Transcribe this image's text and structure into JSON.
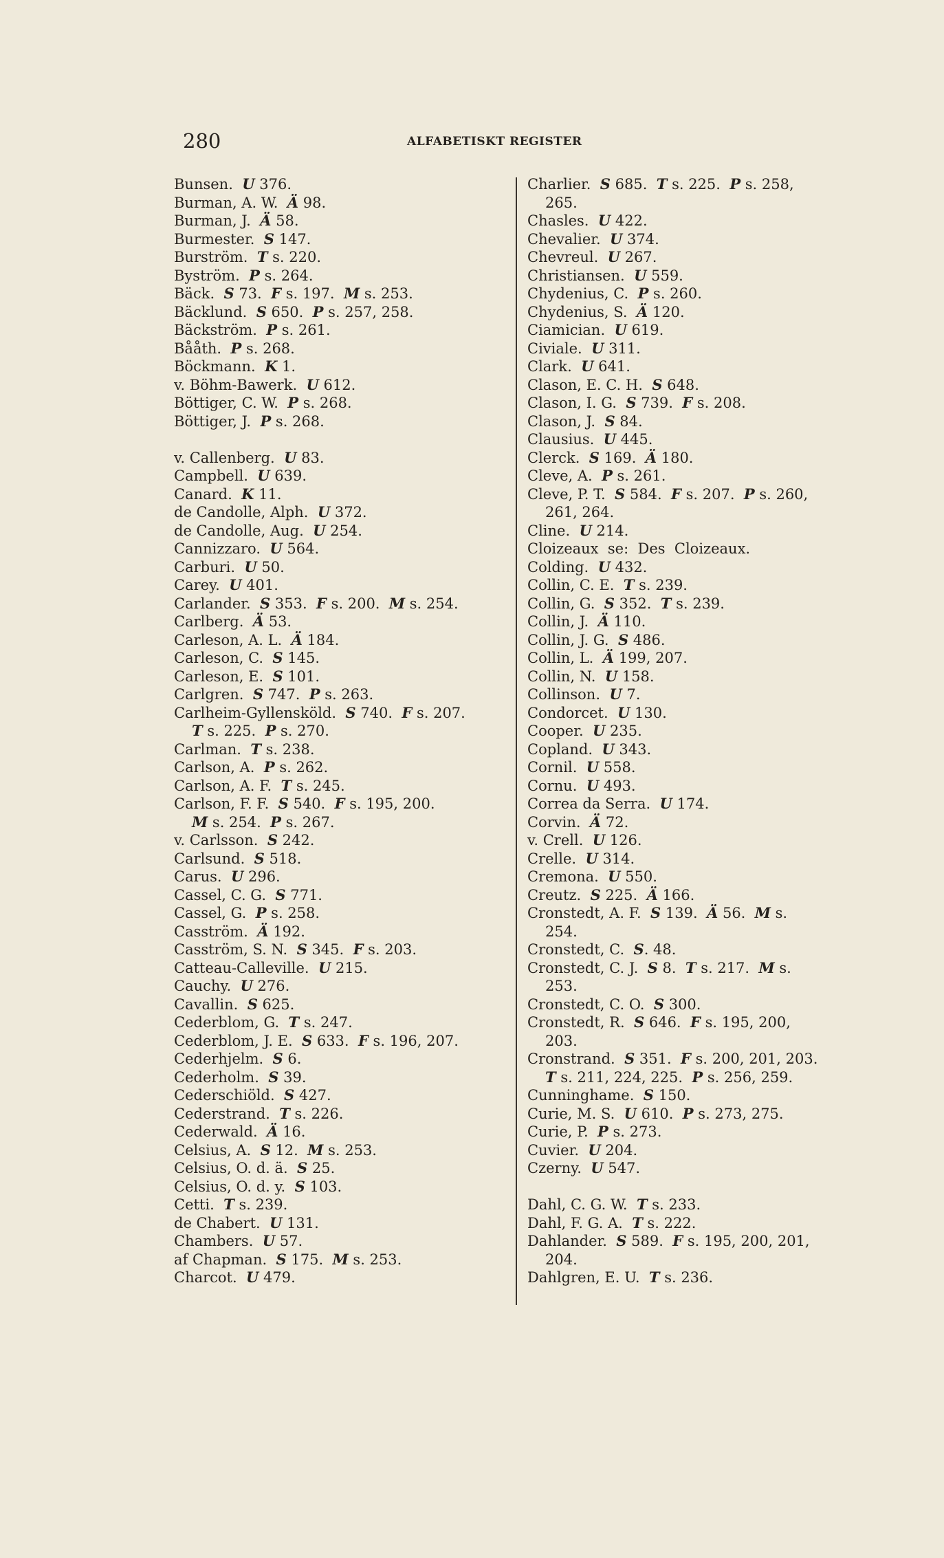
{
  "header": {
    "page_number": "280",
    "running_head": "ALFABETISKT REGISTER"
  },
  "columns": [
    [
      {
        "name": "Bunsen.",
        "refs": "U 376."
      },
      {
        "name": "Burman, A. W.",
        "refs": "Ä 98."
      },
      {
        "name": "Burman, J.",
        "refs": "Ä 58."
      },
      {
        "name": "Burmester.",
        "refs": "S 147."
      },
      {
        "name": "Burström.",
        "refs": "T s. 220."
      },
      {
        "name": "Byström.",
        "refs": "P s. 264."
      },
      {
        "name": "Bäck.",
        "refs": "S 73.  F s. 197.  M s. 253."
      },
      {
        "name": "Bäcklund.",
        "refs": "S 650.  P s. 257, 258."
      },
      {
        "name": "Bäckström.",
        "refs": "P s. 261."
      },
      {
        "name": "Bååth.",
        "refs": "P s. 268."
      },
      {
        "name": "Böckmann.",
        "refs": "K 1."
      },
      {
        "name": "v. Böhm-Bawerk.",
        "refs": "U 612."
      },
      {
        "name": "Böttiger, C. W.",
        "refs": "P s. 268."
      },
      {
        "name": "Böttiger, J.",
        "refs": "P s. 268."
      },
      {
        "blank": true
      },
      {
        "name": "v. Callenberg.",
        "refs": "U 83."
      },
      {
        "name": "Campbell.",
        "refs": "U 639."
      },
      {
        "name": "Canard.",
        "refs": "K 11."
      },
      {
        "name": "de Candolle, Alph.",
        "refs": "U 372."
      },
      {
        "name": "de Candolle, Aug.",
        "refs": "U 254."
      },
      {
        "name": "Cannizzaro.",
        "refs": "U 564."
      },
      {
        "name": "Carburi.",
        "refs": "U 50."
      },
      {
        "name": "Carey.",
        "refs": "U 401."
      },
      {
        "name": "Carlander.",
        "refs": "S 353.  F s. 200.  M s. 254."
      },
      {
        "name": "Carlberg.",
        "refs": "Ä 53."
      },
      {
        "name": "Carleson, A. L.",
        "refs": "Ä 184."
      },
      {
        "name": "Carleson, C.",
        "refs": "S 145."
      },
      {
        "name": "Carleson, E.",
        "refs": "S 101."
      },
      {
        "name": "Carlgren.",
        "refs": "S 747.  P s. 263."
      },
      {
        "name": "Carlheim-Gyllensköld.",
        "refs": "S 740.  F s. 207.",
        "cont": "T s. 225.  P s. 270."
      },
      {
        "name": "Carlman.",
        "refs": "T s. 238."
      },
      {
        "name": "Carlson, A.",
        "refs": "P s. 262."
      },
      {
        "name": "Carlson, A. F.",
        "refs": "T s. 245."
      },
      {
        "name": "Carlson, F. F.",
        "refs": "S 540.  F s. 195, 200.",
        "cont": "M s. 254.  P s. 267."
      },
      {
        "name": "v. Carlsson.",
        "refs": "S 242."
      },
      {
        "name": "Carlsund.",
        "refs": "S 518."
      },
      {
        "name": "Carus.",
        "refs": "U 296."
      },
      {
        "name": "Cassel, C. G.",
        "refs": "S 771."
      },
      {
        "name": "Cassel, G.",
        "refs": "P s. 258."
      },
      {
        "name": "Casström.",
        "refs": "Ä 192."
      },
      {
        "name": "Casström, S. N.",
        "refs": "S 345.  F s. 203."
      },
      {
        "name": "Catteau-Calleville.",
        "refs": "U 215."
      },
      {
        "name": "Cauchy.",
        "refs": "U 276."
      },
      {
        "name": "Cavallin.",
        "refs": "S 625."
      },
      {
        "name": "Cederblom, G.",
        "refs": "T s. 247."
      },
      {
        "name": "Cederblom, J. E.",
        "refs": "S 633.  F s. 196, 207."
      },
      {
        "name": "Cederhjelm.",
        "refs": "S 6."
      },
      {
        "name": "Cederholm.",
        "refs": "S 39."
      },
      {
        "name": "Cederschiöld.",
        "refs": "S 427."
      },
      {
        "name": "Cederstrand.",
        "refs": "T s. 226."
      },
      {
        "name": "Cederwald.",
        "refs": "Ä 16."
      },
      {
        "name": "Celsius, A.",
        "refs": "S 12.  M s. 253."
      },
      {
        "name": "Celsius, O. d. ä.",
        "refs": "S 25."
      },
      {
        "name": "Celsius, O. d. y.",
        "refs": "S 103."
      },
      {
        "name": "Cetti.",
        "refs": "T s. 239."
      },
      {
        "name": "de Chabert.",
        "refs": "U 131."
      },
      {
        "name": "Chambers.",
        "refs": "U 57."
      },
      {
        "name": "af Chapman.",
        "refs": "S 175.  M s. 253."
      },
      {
        "name": "Charcot.",
        "refs": "U 479."
      }
    ],
    [
      {
        "name": "Charlier.",
        "refs": "S 685.  T s. 225.  P s. 258,",
        "cont": "265."
      },
      {
        "name": "Chasles.",
        "refs": "U 422."
      },
      {
        "name": "Chevalier.",
        "refs": "U 374."
      },
      {
        "name": "Chevreul.",
        "refs": "U 267."
      },
      {
        "name": "Christiansen.",
        "refs": "U 559."
      },
      {
        "name": "Chydenius, C.",
        "refs": "P s. 260."
      },
      {
        "name": "Chydenius, S.",
        "refs": "Ä 120."
      },
      {
        "name": "Ciamician.",
        "refs": "U 619."
      },
      {
        "name": "Civiale.",
        "refs": "U 311."
      },
      {
        "name": "Clark.",
        "refs": "U 641."
      },
      {
        "name": "Clason, E. C. H.",
        "refs": "S 648."
      },
      {
        "name": "Clason, I. G.",
        "refs": "S 739.  F s. 208."
      },
      {
        "name": "Clason, J.",
        "refs": "S 84."
      },
      {
        "name": "Clausius.",
        "refs": "U 445."
      },
      {
        "name": "Clerck.",
        "refs": "S 169.  Ä 180."
      },
      {
        "name": "Cleve, A.",
        "refs": "P s. 261."
      },
      {
        "name": "Cleve, P. T.",
        "refs": "S 584.  F s. 207.  P s. 260,",
        "cont": "261, 264."
      },
      {
        "name": "Cline.",
        "refs": "U 214."
      },
      {
        "name": "Cloizeaux  se:  Des  Cloizeaux.",
        "refs": ""
      },
      {
        "name": "Colding.",
        "refs": "U 432."
      },
      {
        "name": "Collin, C. E.",
        "refs": "T s. 239."
      },
      {
        "name": "Collin, G.",
        "refs": "S 352.  T s. 239."
      },
      {
        "name": "Collin, J.",
        "refs": "Ä 110."
      },
      {
        "name": "Collin, J. G.",
        "refs": "S 486."
      },
      {
        "name": "Collin, L.",
        "refs": "Ä 199, 207."
      },
      {
        "name": "Collin, N.",
        "refs": "U 158."
      },
      {
        "name": "Collinson.",
        "refs": "U 7."
      },
      {
        "name": "Condorcet.",
        "refs": "U 130."
      },
      {
        "name": "Cooper.",
        "refs": "U 235."
      },
      {
        "name": "Copland.",
        "refs": "U 343."
      },
      {
        "name": "Cornil.",
        "refs": "U 558."
      },
      {
        "name": "Cornu.",
        "refs": "U 493."
      },
      {
        "name": "Correa da Serra.",
        "refs": "U 174."
      },
      {
        "name": "Corvin.",
        "refs": "Ä 72."
      },
      {
        "name": "v. Crell.",
        "refs": "U 126."
      },
      {
        "name": "Crelle.",
        "refs": "U 314."
      },
      {
        "name": "Cremona.",
        "refs": "U 550."
      },
      {
        "name": "Creutz.",
        "refs": "S 225.  Ä 166."
      },
      {
        "name": "Cronstedt, A. F.",
        "refs": "S 139.  Ä 56.  M s.",
        "cont": "254."
      },
      {
        "name": "Cronstedt, C.",
        "refs": "S. 48."
      },
      {
        "name": "Cronstedt, C. J.",
        "refs": "S 8.  T s. 217.  M s.",
        "cont": "253."
      },
      {
        "name": "Cronstedt, C. O.",
        "refs": "S 300."
      },
      {
        "name": "Cronstedt, R.",
        "refs": "S 646.  F s. 195, 200,",
        "cont": "203."
      },
      {
        "name": "Cronstrand.",
        "refs": "S 351.  F s. 200, 201, 203.",
        "cont": "T s. 211, 224, 225.  P s. 256, 259."
      },
      {
        "name": "Cunninghame.",
        "refs": "S 150."
      },
      {
        "name": "Curie, M. S.",
        "refs": "U 610.  P s. 273, 275."
      },
      {
        "name": "Curie, P.",
        "refs": "P s. 273."
      },
      {
        "name": "Cuvier.",
        "refs": "U 204."
      },
      {
        "name": "Czerny.",
        "refs": "U 547."
      },
      {
        "blank": true
      },
      {
        "name": "Dahl, C. G. W.",
        "refs": "T s. 233."
      },
      {
        "name": "Dahl, F. G. A.",
        "refs": "T s. 222."
      },
      {
        "name": "Dahlander.",
        "refs": "S 589.  F s. 195, 200, 201,",
        "cont": "204."
      },
      {
        "name": "Dahlgren, E. U.",
        "refs": "T s. 236."
      }
    ]
  ]
}
